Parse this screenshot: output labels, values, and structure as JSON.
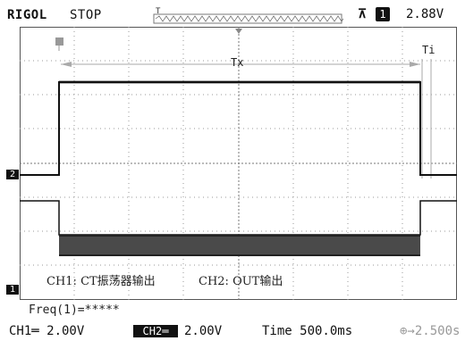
{
  "topbar": {
    "brand": "RIGOL",
    "status": "STOP",
    "trigger_level": "2.88V",
    "trigger_channel": "1",
    "trigger_icon_glyph": "⊼"
  },
  "waveform": {
    "tx_label": "Tx",
    "ti_label": "Ti"
  },
  "notes": {
    "ch1": "CH1: CT振荡器输出",
    "ch2": "CH2: OUT输出"
  },
  "measure": {
    "freq": "Freq(1)=*****"
  },
  "markers": {
    "ch2": "2",
    "ch1": "1"
  },
  "bottombar": {
    "ch1_scale": "CH1═ 2.00V",
    "ch2_label": "CH2═",
    "ch2_scale": "2.00V",
    "time": "Time 500.0ms",
    "delay": "⊕→2.500s"
  },
  "colors": {
    "trace": "#111111",
    "grid": "#9a9a9a",
    "background": "#ffffff"
  }
}
